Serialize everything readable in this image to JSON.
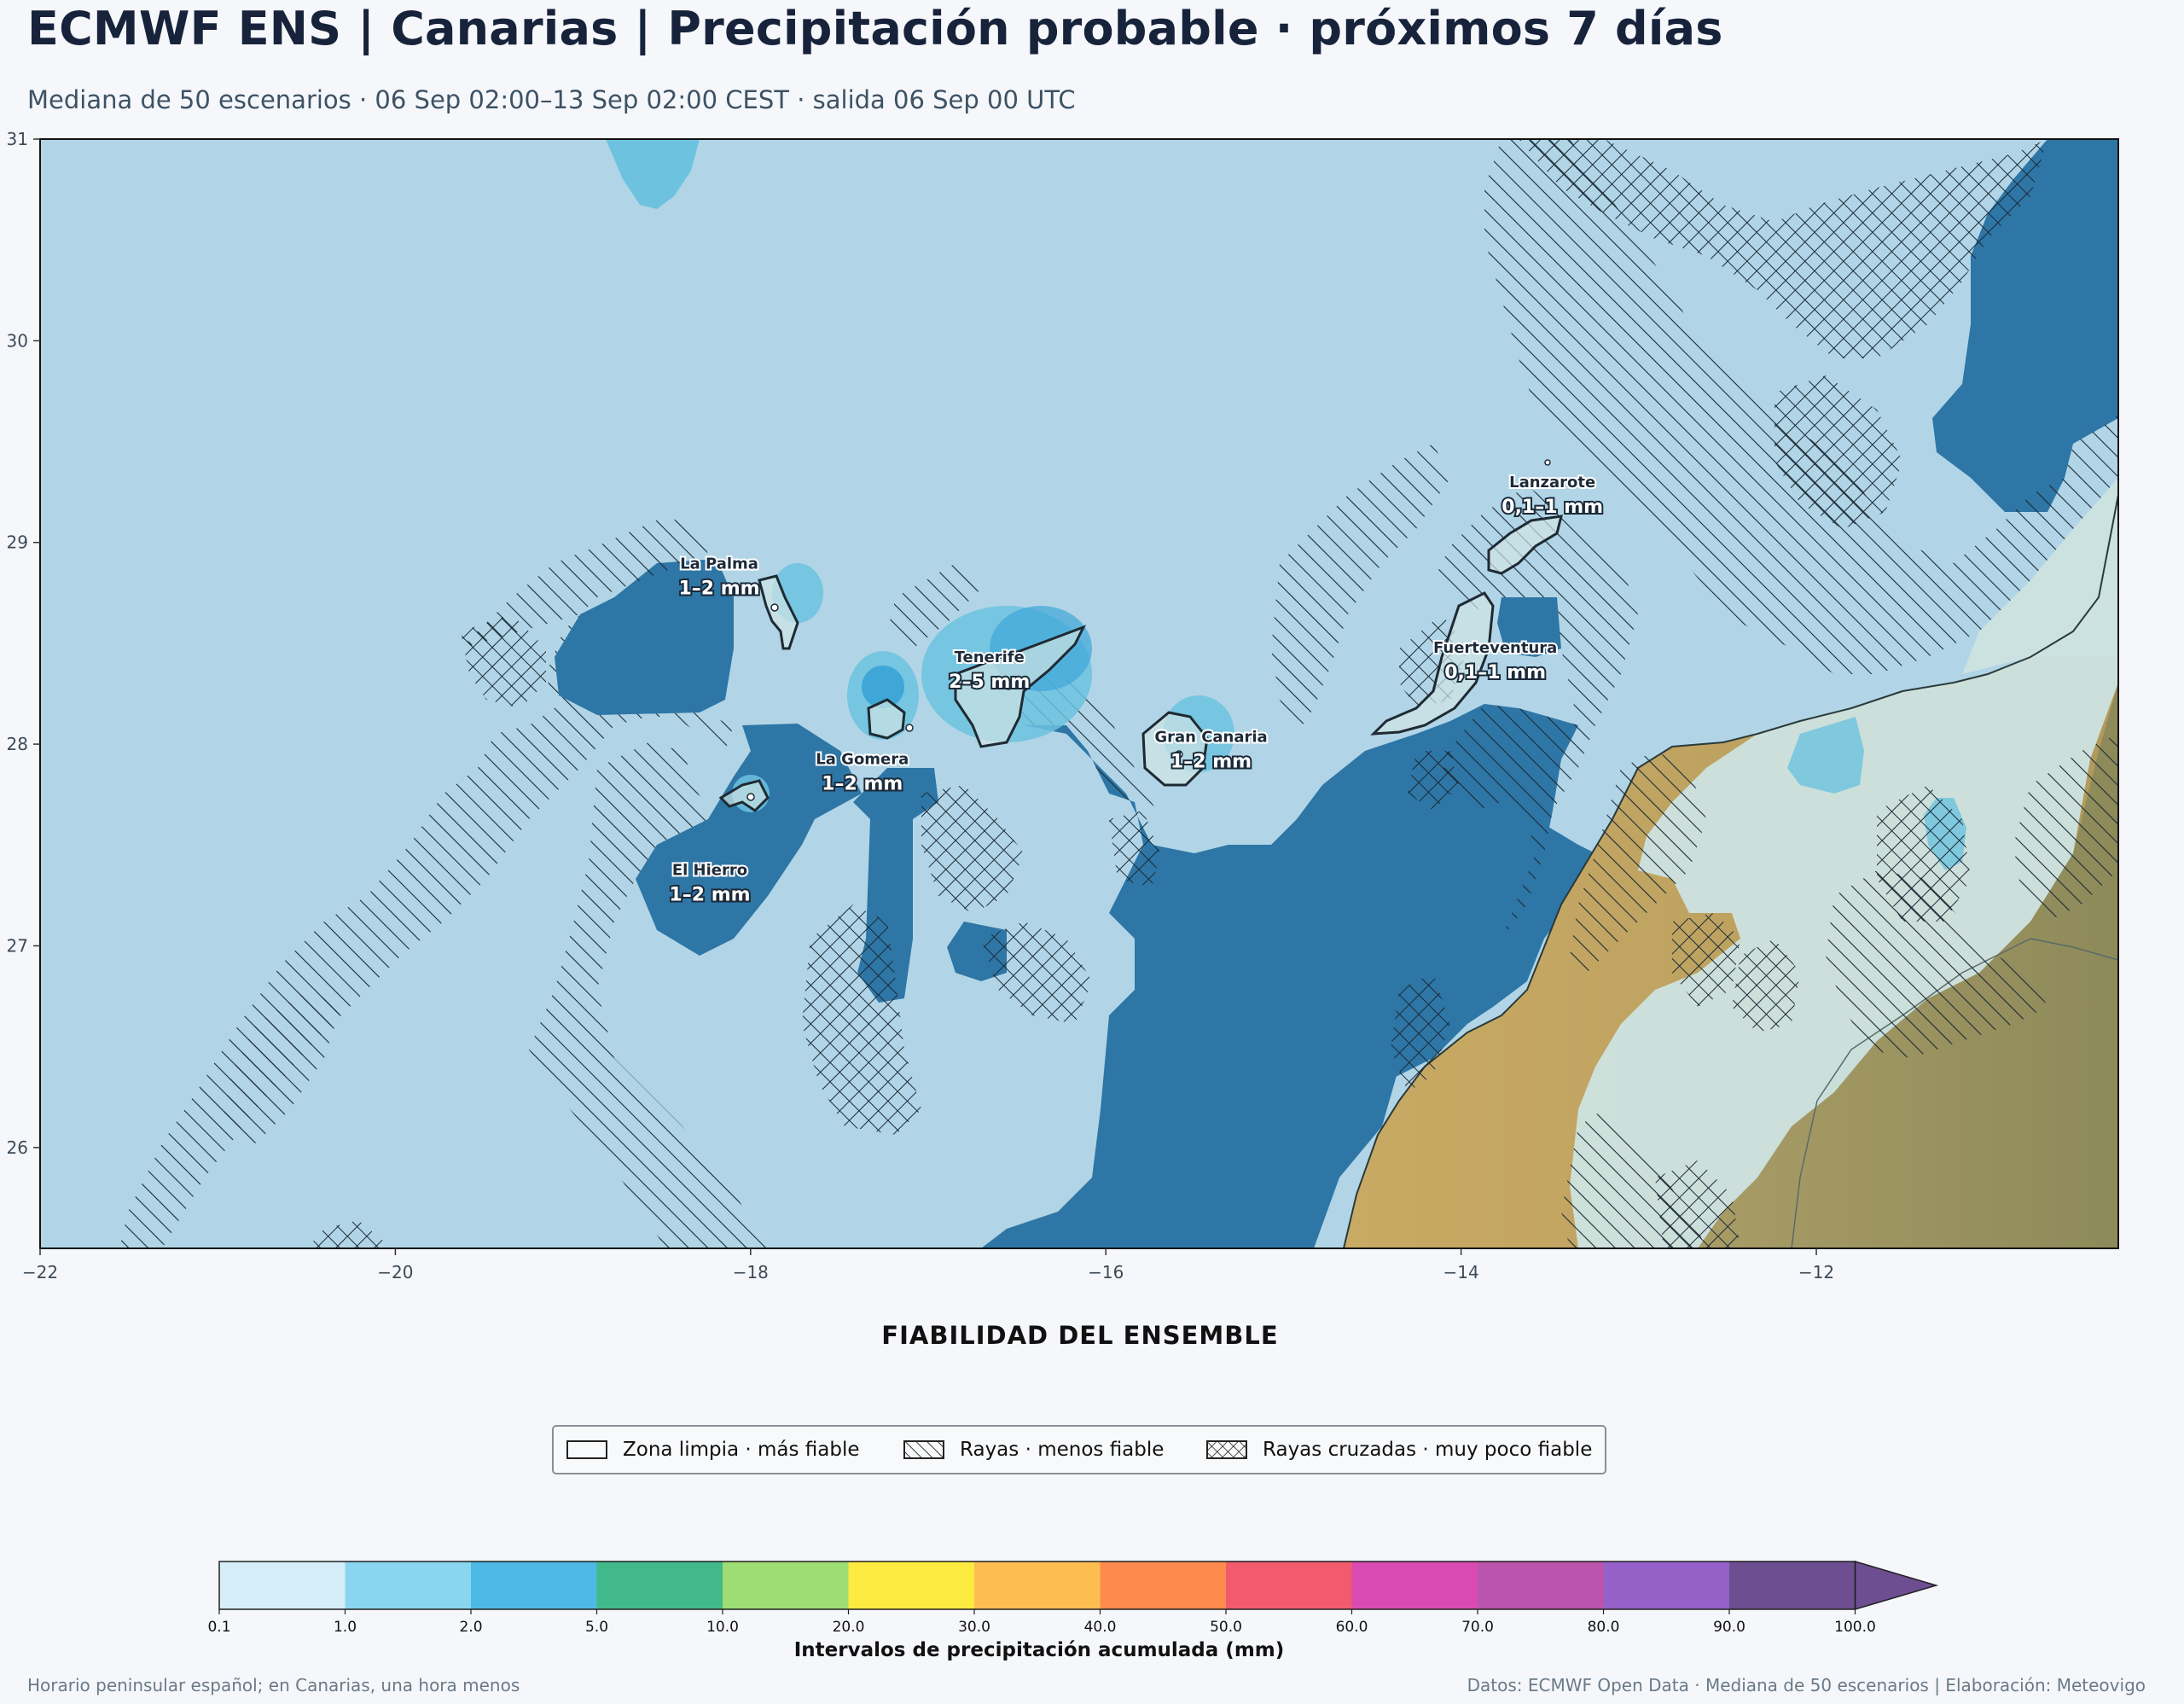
{
  "header": {
    "title": "ECMWF ENS | Canarias | Precipitación probable · próximos 7 días",
    "subtitle": "Mediana de 50 escenarios · 06 Sep 02:00–13 Sep 02:00 CEST · salida 06 Sep 00 UTC"
  },
  "map": {
    "lon_range": [
      -22,
      -10.3
    ],
    "lat_range": [
      25.5,
      31
    ],
    "lon_ticks": [
      "−22",
      "−20",
      "−18",
      "−16",
      "−14",
      "−12"
    ],
    "lon_tick_values": [
      -22,
      -20,
      -18,
      -16,
      -14,
      -12
    ],
    "lat_ticks": [
      "26",
      "27",
      "28",
      "29",
      "30",
      "31"
    ],
    "lat_tick_values": [
      26,
      27,
      28,
      29,
      30,
      31
    ],
    "colors": {
      "ocean": "#b1d5e6",
      "deep_blue": "#2e76a6",
      "light_fill": "#cde3e0",
      "desert": "#c6a965",
      "desert_dark": "#a59a63",
      "blob": "#6cc2df",
      "blob_dark": "#3ea7d8"
    },
    "islands": [
      {
        "name": "La Palma",
        "value": "1–2 mm",
        "lon": -17.85,
        "lat": 28.68
      },
      {
        "name": "Tenerife",
        "value": "2–5 mm",
        "lon": -16.55,
        "lat": 28.28
      },
      {
        "name": "La Gomera",
        "value": "1–2 mm",
        "lon": -17.15,
        "lat": 28.1
      },
      {
        "name": "El Hierro",
        "value": "1–2 mm",
        "lon": -17.98,
        "lat": 27.74
      },
      {
        "name": "Gran Canaria",
        "value": "1–2 mm",
        "lon": -15.6,
        "lat": 27.96
      },
      {
        "name": "Lanzarote",
        "value": "0,1–1 mm",
        "lon": -13.63,
        "lat": 29.05
      },
      {
        "name": "Fuerteventura",
        "value": "0,1–1 mm",
        "lon": -14.0,
        "lat": 28.36
      }
    ]
  },
  "reliability": {
    "title": "FIABILIDAD DEL ENSEMBLE",
    "items": [
      {
        "label": "Zona limpia · más fiable",
        "pattern": "none"
      },
      {
        "label": "Rayas · menos fiable",
        "pattern": "hatch"
      },
      {
        "label": "Rayas cruzadas · muy poco fiable",
        "pattern": "crosshatch"
      }
    ]
  },
  "colorbar": {
    "label": "Intervalos de precipitación acumulada (mm)",
    "ticks": [
      "0.1",
      "1.0",
      "2.0",
      "5.0",
      "10.0",
      "20.0",
      "30.0",
      "40.0",
      "50.0",
      "60.0",
      "70.0",
      "80.0",
      "90.0",
      "100.0"
    ],
    "colors": [
      "#d5eef7",
      "#8ad5ef",
      "#4db9e4",
      "#42b98a",
      "#9ddd74",
      "#fdeb41",
      "#febd50",
      "#fe8b4d",
      "#f15b6c",
      "#d94bb3",
      "#bb54ad",
      "#9561c9",
      "#6d4e91"
    ],
    "extend_color": "#6d4e91"
  },
  "footer": {
    "left": "Horario peninsular español; en Canarias, una hora menos",
    "right": "Datos: ECMWF Open Data · Mediana de 50 escenarios | Elaboración: Meteovigo"
  }
}
